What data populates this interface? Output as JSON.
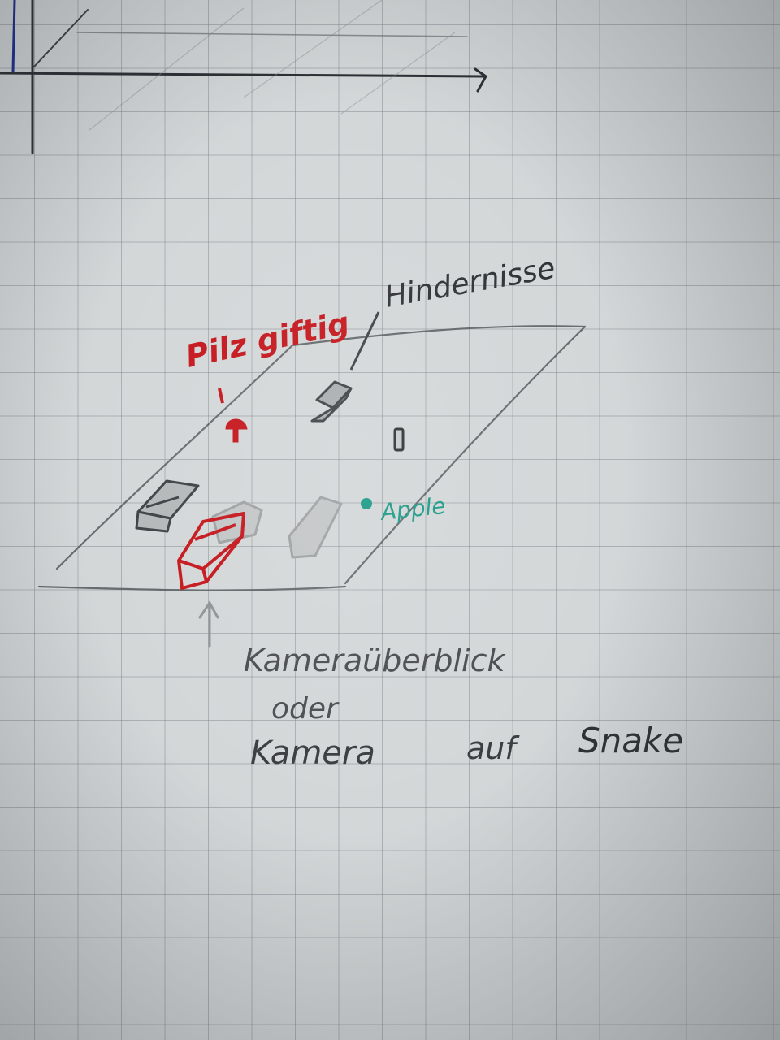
{
  "labels": {
    "mushroom": "Pilz giftig",
    "obstacles": "Hindernisse",
    "apple": "Apple",
    "camera_line1": "Kameraüberblick",
    "camera_line2": "oder",
    "camera_line3_a": "Kamera",
    "camera_line3_b": "auf",
    "camera_line3_c": "Snake"
  },
  "colors": {
    "pencil": "#4a4d50",
    "red_marker": "#c4161c",
    "teal_marker": "#1a9a86",
    "blue_pen": "#1b2f8f",
    "silver": "#b8bcbd"
  }
}
